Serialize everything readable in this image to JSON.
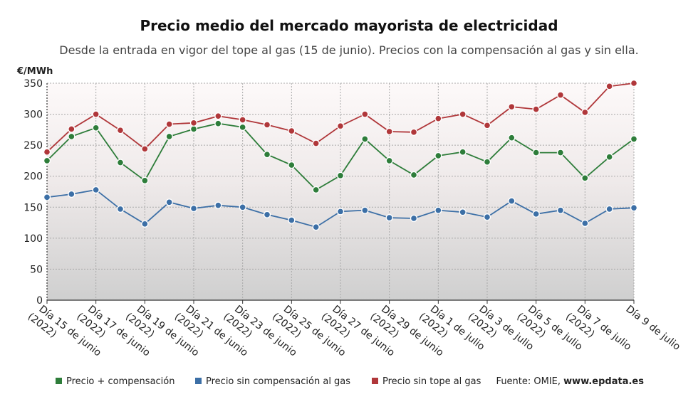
{
  "title": "Precio medio del mercado mayorista de electricidad",
  "subtitle": "Desde la entrada en vigor del tope al gas (15 de junio). Precios con la compensación al gas y sin ella.",
  "source_label": "Fuente: OMIE,",
  "source_site": "www.epdata.es",
  "chart_data": {
    "type": "line",
    "unit_label": "€/MWh",
    "ylim": [
      0,
      350
    ],
    "yticks": [
      0,
      50,
      100,
      150,
      200,
      250,
      300,
      350
    ],
    "grid": true,
    "legend_position": "bottom",
    "categories": [
      "Día 15 de junio (2022)",
      "Día 16 de junio (2022)",
      "Día 17 de junio (2022)",
      "Día 18 de junio (2022)",
      "Día 19 de junio (2022)",
      "Día 20 de junio (2022)",
      "Día 21 de junio (2022)",
      "Día 22 de junio (2022)",
      "Día 23 de junio (2022)",
      "Día 24 de junio (2022)",
      "Día 25 de junio (2022)",
      "Día 26 de junio (2022)",
      "Día 27 de junio (2022)",
      "Día 28 de junio (2022)",
      "Día 29 de junio (2022)",
      "Día 30 de junio (2022)",
      "Día 1 de julio (2022)",
      "Día 2 de julio (2022)",
      "Día 3 de julio (2022)",
      "Día 4 de julio (2022)",
      "Día 5 de julio (2022)",
      "Día 6 de julio (2022)",
      "Día 7 de julio (2022)",
      "Día 8 de julio (2022)",
      "Día 9 de julio (2022)"
    ],
    "tick_labels": [
      {
        "index": 0,
        "line1": "Día 15 de junio",
        "line2": "(2022)"
      },
      {
        "index": 2,
        "line1": "Día 17 de junio",
        "line2": "(2022)"
      },
      {
        "index": 4,
        "line1": "Día 19 de junio",
        "line2": "(2022)"
      },
      {
        "index": 6,
        "line1": "Día 21 de junio",
        "line2": "(2022)"
      },
      {
        "index": 8,
        "line1": "Día 23 de junio",
        "line2": "(2022)"
      },
      {
        "index": 10,
        "line1": "Día 25 de junio",
        "line2": "(2022)"
      },
      {
        "index": 12,
        "line1": "Día 27 de junio",
        "line2": "(2022)"
      },
      {
        "index": 14,
        "line1": "Día 29 de junio",
        "line2": "(2022)"
      },
      {
        "index": 16,
        "line1": "Día 1 de julio",
        "line2": "(2022)"
      },
      {
        "index": 18,
        "line1": "Día 3 de julio",
        "line2": "(2022)"
      },
      {
        "index": 20,
        "line1": "Día 5 de julio",
        "line2": "(2022)"
      },
      {
        "index": 22,
        "line1": "Día 7 de julio",
        "line2": "(2022)"
      },
      {
        "index": 24,
        "line1": "Día 9 de julio",
        "line2": ""
      }
    ],
    "series": [
      {
        "name": "Precio + compensación",
        "color": "#2e7d3a",
        "values": [
          225,
          264,
          278,
          222,
          193,
          264,
          276,
          285,
          279,
          235,
          218,
          178,
          201,
          260,
          225,
          202,
          233,
          239,
          223,
          262,
          238,
          238,
          197,
          231,
          260
        ]
      },
      {
        "name": "Precio sin compensación al gas",
        "color": "#3c6fa6",
        "values": [
          166,
          171,
          178,
          147,
          123,
          158,
          148,
          153,
          150,
          138,
          129,
          118,
          143,
          145,
          133,
          132,
          145,
          142,
          134,
          160,
          139,
          145,
          124,
          147,
          149
        ]
      },
      {
        "name": "Precio sin tope al gas",
        "color": "#b0373a",
        "values": [
          239,
          276,
          300,
          274,
          244,
          284,
          286,
          297,
          291,
          283,
          273,
          253,
          281,
          300,
          272,
          271,
          293,
          300,
          282,
          312,
          308,
          331,
          303,
          345,
          350
        ]
      }
    ]
  }
}
